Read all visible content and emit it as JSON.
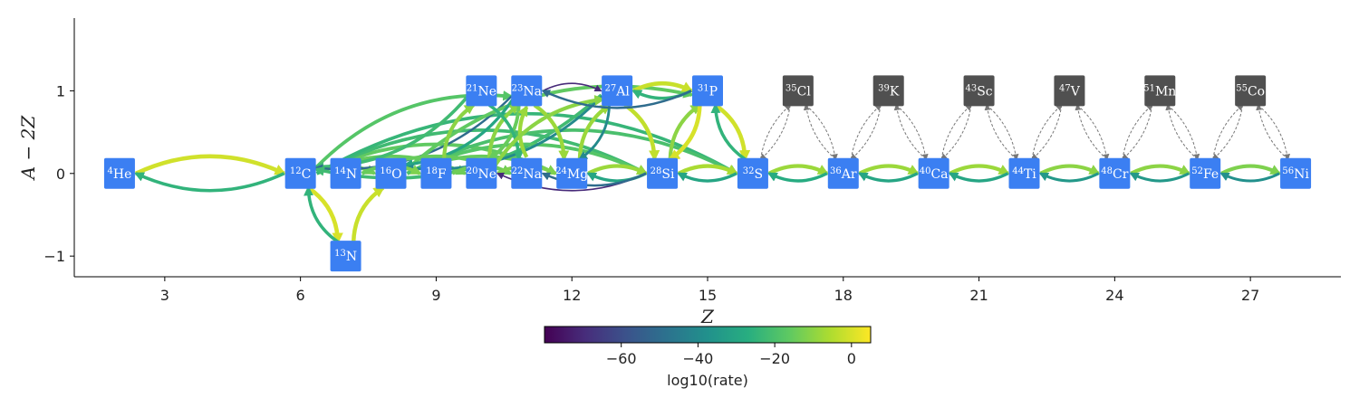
{
  "chart_data": {
    "type": "network",
    "xlabel": "Z",
    "ylabel": "A − 2Z",
    "xticks": [
      3,
      6,
      9,
      12,
      15,
      18,
      21,
      24,
      27
    ],
    "yticks": [
      -1,
      0,
      1
    ],
    "xlim": [
      1.0,
      29.0
    ],
    "ylim": [
      -1.25,
      1.88
    ],
    "colorbar": {
      "label": "log10(rate)",
      "range": [
        -80,
        5
      ],
      "ticks": [
        -60,
        -40,
        -20,
        0
      ],
      "tick_labels": [
        "−60",
        "−40",
        "−20",
        "0"
      ],
      "colormap": [
        "#440154",
        "#472d7b",
        "#3b528b",
        "#2c728e",
        "#21918c",
        "#28ae80",
        "#5ec962",
        "#addc30",
        "#fde725"
      ]
    },
    "colors": {
      "active_node": "#3b7ff2",
      "inactive_node": "#505050",
      "inactive_edge": "#777777"
    },
    "nodes": [
      {
        "id": "He4",
        "mass": "4",
        "sym": "He",
        "Z": 2,
        "N_Z": 0,
        "active": true
      },
      {
        "id": "C12",
        "mass": "12",
        "sym": "C",
        "Z": 6,
        "N_Z": 0,
        "active": true
      },
      {
        "id": "N13",
        "mass": "13",
        "sym": "N",
        "Z": 7,
        "N_Z": -1,
        "active": true
      },
      {
        "id": "N14",
        "mass": "14",
        "sym": "N",
        "Z": 7,
        "N_Z": 0,
        "active": true
      },
      {
        "id": "O16",
        "mass": "16",
        "sym": "O",
        "Z": 8,
        "N_Z": 0,
        "active": true
      },
      {
        "id": "F18",
        "mass": "18",
        "sym": "F",
        "Z": 9,
        "N_Z": 0,
        "active": true
      },
      {
        "id": "Ne20",
        "mass": "20",
        "sym": "Ne",
        "Z": 10,
        "N_Z": 0,
        "active": true
      },
      {
        "id": "Ne21",
        "mass": "21",
        "sym": "Ne",
        "Z": 10,
        "N_Z": 1,
        "active": true
      },
      {
        "id": "Na22",
        "mass": "22",
        "sym": "Na",
        "Z": 11,
        "N_Z": 0,
        "active": true
      },
      {
        "id": "Na23",
        "mass": "23",
        "sym": "Na",
        "Z": 11,
        "N_Z": 1,
        "active": true
      },
      {
        "id": "Mg24",
        "mass": "24",
        "sym": "Mg",
        "Z": 12,
        "N_Z": 0,
        "active": true
      },
      {
        "id": "Al27",
        "mass": "27",
        "sym": "Al",
        "Z": 13,
        "N_Z": 1,
        "active": true
      },
      {
        "id": "Si28",
        "mass": "28",
        "sym": "Si",
        "Z": 14,
        "N_Z": 0,
        "active": true
      },
      {
        "id": "P31",
        "mass": "31",
        "sym": "P",
        "Z": 15,
        "N_Z": 1,
        "active": true
      },
      {
        "id": "S32",
        "mass": "32",
        "sym": "S",
        "Z": 16,
        "N_Z": 0,
        "active": true
      },
      {
        "id": "Cl35",
        "mass": "35",
        "sym": "Cl",
        "Z": 17,
        "N_Z": 1,
        "active": false
      },
      {
        "id": "Ar36",
        "mass": "36",
        "sym": "Ar",
        "Z": 18,
        "N_Z": 0,
        "active": true
      },
      {
        "id": "K39",
        "mass": "39",
        "sym": "K",
        "Z": 19,
        "N_Z": 1,
        "active": false
      },
      {
        "id": "Ca40",
        "mass": "40",
        "sym": "Ca",
        "Z": 20,
        "N_Z": 0,
        "active": true
      },
      {
        "id": "Sc43",
        "mass": "43",
        "sym": "Sc",
        "Z": 21,
        "N_Z": 1,
        "active": false
      },
      {
        "id": "Ti44",
        "mass": "44",
        "sym": "Ti",
        "Z": 22,
        "N_Z": 0,
        "active": true
      },
      {
        "id": "V47",
        "mass": "47",
        "sym": "V",
        "Z": 23,
        "N_Z": 1,
        "active": false
      },
      {
        "id": "Cr48",
        "mass": "48",
        "sym": "Cr",
        "Z": 24,
        "N_Z": 0,
        "active": true
      },
      {
        "id": "Mn51",
        "mass": "51",
        "sym": "Mn",
        "Z": 25,
        "N_Z": 1,
        "active": false
      },
      {
        "id": "Fe52",
        "mass": "52",
        "sym": "Fe",
        "Z": 26,
        "N_Z": 0,
        "active": true
      },
      {
        "id": "Co55",
        "mass": "55",
        "sym": "Co",
        "Z": 27,
        "N_Z": 1,
        "active": false
      },
      {
        "id": "Ni56",
        "mass": "56",
        "sym": "Ni",
        "Z": 28,
        "N_Z": 0,
        "active": true
      }
    ],
    "edges": [
      {
        "from": "He4",
        "to": "C12",
        "rate": -1
      },
      {
        "from": "C12",
        "to": "He4",
        "rate": -25
      },
      {
        "from": "C12",
        "to": "N13",
        "rate": 0
      },
      {
        "from": "N13",
        "to": "C12",
        "rate": -25
      },
      {
        "from": "N13",
        "to": "O16",
        "rate": -2
      },
      {
        "from": "C12",
        "to": "O16",
        "rate": -14
      },
      {
        "from": "C12",
        "to": "Ne20",
        "rate": -15
      },
      {
        "from": "C12",
        "to": "Na23",
        "rate": -18
      },
      {
        "from": "C12",
        "to": "Mg24",
        "rate": -16
      },
      {
        "from": "C12",
        "to": "Si28",
        "rate": -22
      },
      {
        "from": "C12",
        "to": "S32",
        "rate": -24
      },
      {
        "from": "Ne21",
        "to": "C12",
        "rate": -22
      },
      {
        "from": "Na23",
        "to": "C12",
        "rate": -50
      },
      {
        "from": "Al27",
        "to": "C12",
        "rate": -22
      },
      {
        "from": "O16",
        "to": "Ne20",
        "rate": -14
      },
      {
        "from": "O16",
        "to": "Mg24",
        "rate": -15
      },
      {
        "from": "O16",
        "to": "Si28",
        "rate": -18
      },
      {
        "from": "O16",
        "to": "P31",
        "rate": -16
      },
      {
        "from": "O16",
        "to": "S32",
        "rate": -20
      },
      {
        "from": "Na23",
        "to": "O16",
        "rate": -30
      },
      {
        "from": "Al27",
        "to": "O16",
        "rate": -40
      },
      {
        "from": "N14",
        "to": "F18",
        "rate": -12
      },
      {
        "from": "N14",
        "to": "Na22",
        "rate": -15
      },
      {
        "from": "F18",
        "to": "Ne21",
        "rate": -10
      },
      {
        "from": "F18",
        "to": "Na22",
        "rate": -14
      },
      {
        "from": "Ne20",
        "to": "Mg24",
        "rate": -12
      },
      {
        "from": "Ne20",
        "to": "Na23",
        "rate": -10
      },
      {
        "from": "Na23",
        "to": "Ne20",
        "rate": -15
      },
      {
        "from": "Ne21",
        "to": "Na22",
        "rate": -25
      },
      {
        "from": "Na22",
        "to": "Na23",
        "rate": -8
      },
      {
        "from": "Na23",
        "to": "Mg24",
        "rate": -8
      },
      {
        "from": "Na23",
        "to": "Al27",
        "rate": -70
      },
      {
        "from": "Ne20",
        "to": "Al27",
        "rate": -10
      },
      {
        "from": "Mg24",
        "to": "Al27",
        "rate": -8
      },
      {
        "from": "Al27",
        "to": "Mg24",
        "rate": -40
      },
      {
        "from": "Mg24",
        "to": "Si28",
        "rate": -8
      },
      {
        "from": "Si28",
        "to": "Mg24",
        "rate": -30
      },
      {
        "from": "Si28",
        "to": "Ne20",
        "rate": -70
      },
      {
        "from": "Si28",
        "to": "Na22",
        "rate": -50
      },
      {
        "from": "Al27",
        "to": "Si28",
        "rate": -3
      },
      {
        "from": "Al27",
        "to": "P31",
        "rate": -2
      },
      {
        "from": "P31",
        "to": "Al27",
        "rate": -25
      },
      {
        "from": "P31",
        "to": "Na23",
        "rate": -50
      },
      {
        "from": "Si28",
        "to": "P31",
        "rate": -10
      },
      {
        "from": "P31",
        "to": "Si28",
        "rate": 0
      },
      {
        "from": "P31",
        "to": "S32",
        "rate": -1
      },
      {
        "from": "S32",
        "to": "P31",
        "rate": -25
      },
      {
        "from": "Si28",
        "to": "S32",
        "rate": -6
      },
      {
        "from": "S32",
        "to": "Si28",
        "rate": -30
      },
      {
        "from": "S32",
        "to": "Ar36",
        "rate": -8
      },
      {
        "from": "Ar36",
        "to": "S32",
        "rate": -28
      },
      {
        "from": "Ar36",
        "to": "Ca40",
        "rate": -8
      },
      {
        "from": "Ca40",
        "to": "Ar36",
        "rate": -30
      },
      {
        "from": "Ca40",
        "to": "Ti44",
        "rate": -8
      },
      {
        "from": "Ti44",
        "to": "Ca40",
        "rate": -30
      },
      {
        "from": "Ti44",
        "to": "Cr48",
        "rate": -10
      },
      {
        "from": "Cr48",
        "to": "Ti44",
        "rate": -35
      },
      {
        "from": "Cr48",
        "to": "Fe52",
        "rate": -10
      },
      {
        "from": "Fe52",
        "to": "Cr48",
        "rate": -35
      },
      {
        "from": "Fe52",
        "to": "Ni56",
        "rate": -12
      },
      {
        "from": "Ni56",
        "to": "Fe52",
        "rate": -38
      }
    ],
    "inactive_edges": [
      [
        "S32",
        "Cl35"
      ],
      [
        "Cl35",
        "S32"
      ],
      [
        "Cl35",
        "Ar36"
      ],
      [
        "Ar36",
        "Cl35"
      ],
      [
        "Ar36",
        "K39"
      ],
      [
        "K39",
        "Ar36"
      ],
      [
        "K39",
        "Ca40"
      ],
      [
        "Ca40",
        "K39"
      ],
      [
        "Ca40",
        "Sc43"
      ],
      [
        "Sc43",
        "Ca40"
      ],
      [
        "Sc43",
        "Ti44"
      ],
      [
        "Ti44",
        "Sc43"
      ],
      [
        "Ti44",
        "V47"
      ],
      [
        "V47",
        "Ti44"
      ],
      [
        "V47",
        "Cr48"
      ],
      [
        "Cr48",
        "V47"
      ],
      [
        "Cr48",
        "Mn51"
      ],
      [
        "Mn51",
        "Cr48"
      ],
      [
        "Mn51",
        "Fe52"
      ],
      [
        "Fe52",
        "Mn51"
      ],
      [
        "Fe52",
        "Co55"
      ],
      [
        "Co55",
        "Fe52"
      ],
      [
        "Co55",
        "Ni56"
      ],
      [
        "Ni56",
        "Co55"
      ]
    ]
  }
}
